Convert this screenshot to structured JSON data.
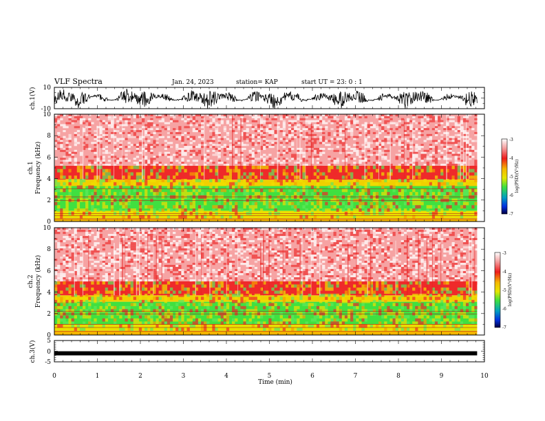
{
  "header": {
    "title": "VLF Spectra",
    "date": "Jan. 24, 2023",
    "station": "station= KAP",
    "start": "start  UT =   23: 0  : 1"
  },
  "chart_data": [
    {
      "type": "line",
      "name": "ch1-waveform",
      "ylabel": "ch.1(V)",
      "ylim": [
        -10,
        10
      ],
      "yticks": [
        "10",
        "-10"
      ],
      "xlim": [
        0,
        10
      ],
      "x_end": 9.83
    },
    {
      "type": "heatmap",
      "name": "ch1-spectrogram",
      "ylabel_line1": "ch.1",
      "ylabel_line2": "Frequency  (kHz)",
      "ylim": [
        0,
        10
      ],
      "yticks": [
        "0",
        "2",
        "4",
        "6",
        "8",
        "10"
      ],
      "xlim": [
        0,
        10
      ],
      "x_end": 9.83,
      "colorbar": {
        "label": "log(PSD)(V²/Hz)",
        "range": [
          -7,
          -3
        ],
        "ticks": [
          "-3",
          "-4",
          "-5",
          "-6",
          "-7"
        ]
      },
      "bands": [
        {
          "from_khz": 0,
          "to_khz": 0.3,
          "color": "#f4b400"
        },
        {
          "from_khz": 0.3,
          "to_khz": 1.0,
          "color": "#e8e000"
        },
        {
          "from_khz": 1.0,
          "to_khz": 3.3,
          "color": "#40e040"
        },
        {
          "from_khz": 3.3,
          "to_khz": 3.9,
          "color": "#f0d000"
        },
        {
          "from_khz": 3.9,
          "to_khz": 5.2,
          "color": "#ef2a2a"
        },
        {
          "from_khz": 5.2,
          "to_khz": 10,
          "color": "#f6a3a3"
        }
      ]
    },
    {
      "type": "heatmap",
      "name": "ch2-spectrogram",
      "ylabel_line1": "ch.2",
      "ylabel_line2": "Frequency  (kHz)",
      "ylim": [
        0,
        10
      ],
      "yticks": [
        "0",
        "2",
        "4",
        "6",
        "8",
        "10"
      ],
      "xlim": [
        0,
        10
      ],
      "x_end": 9.83,
      "colorbar": {
        "label": "log(PSD)(V²/Hz)",
        "range": [
          -7,
          -3
        ],
        "ticks": [
          "-3",
          "-4",
          "-5",
          "-6",
          "-7"
        ]
      },
      "bands": [
        {
          "from_khz": 0,
          "to_khz": 0.4,
          "color": "#f4b400"
        },
        {
          "from_khz": 0.4,
          "to_khz": 1.0,
          "color": "#e8e000"
        },
        {
          "from_khz": 1.0,
          "to_khz": 3.1,
          "color": "#40e040"
        },
        {
          "from_khz": 3.1,
          "to_khz": 3.7,
          "color": "#f0d000"
        },
        {
          "from_khz": 3.7,
          "to_khz": 5.0,
          "color": "#ef2a2a"
        },
        {
          "from_khz": 5.0,
          "to_khz": 10,
          "color": "#f6a3a3"
        }
      ]
    },
    {
      "type": "line",
      "name": "ch3-waveform",
      "ylabel": "ch.3(V)",
      "ylim": [
        -5,
        5
      ],
      "yticks": [
        "5",
        "0",
        "-5"
      ],
      "y_level": -1.0,
      "xlim": [
        0,
        10
      ],
      "x_end": 9.83
    }
  ],
  "xaxis": {
    "label": "Time  (min)",
    "ticks": [
      "0",
      "1",
      "2",
      "3",
      "4",
      "5",
      "6",
      "7",
      "8",
      "9",
      "10"
    ]
  }
}
